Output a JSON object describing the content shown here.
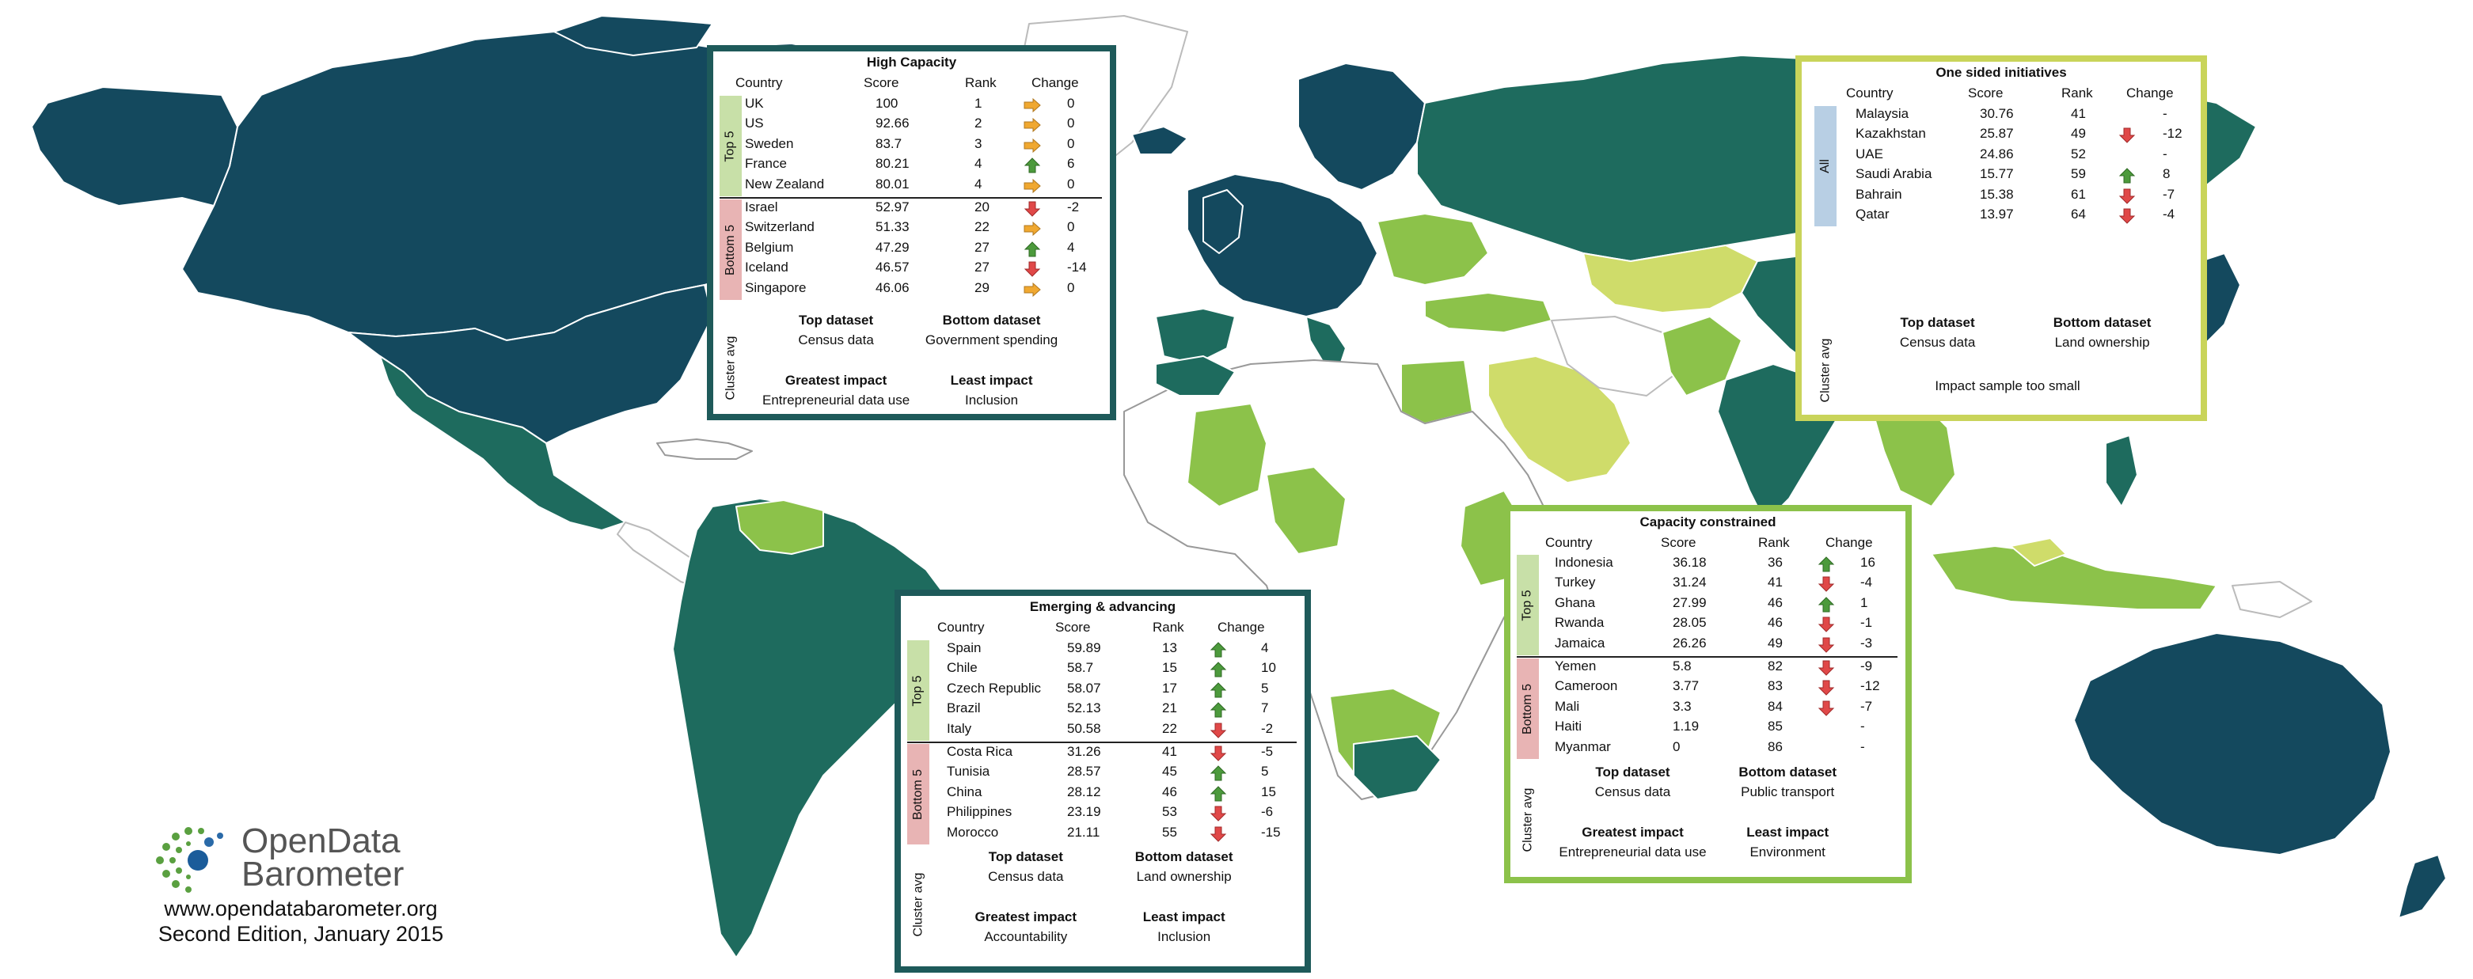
{
  "colors": {
    "high_capacity": "#14495e",
    "emerging_advancing": "#1e6b5e",
    "capacity_constrained": "#8cc24a",
    "one_sided": "#cfdc6a",
    "no_data": "#ffffff",
    "up_arrow": "#4c9a3c",
    "down_arrow": "#e04848",
    "flat_arrow": "#f0a830"
  },
  "panels": {
    "high_capacity": {
      "title": "High Capacity",
      "border_color": "#1e5a5a",
      "headers": {
        "country": "Country",
        "score": "Score",
        "rank": "Rank",
        "change": "Change"
      },
      "top_label": "Top 5",
      "bottom_label": "Bottom 5",
      "rows": [
        {
          "country": "UK",
          "score": "100",
          "rank": "1",
          "dir": "flat",
          "change": "0"
        },
        {
          "country": "US",
          "score": "92.66",
          "rank": "2",
          "dir": "flat",
          "change": "0"
        },
        {
          "country": "Sweden",
          "score": "83.7",
          "rank": "3",
          "dir": "flat",
          "change": "0"
        },
        {
          "country": "France",
          "score": "80.21",
          "rank": "4",
          "dir": "up",
          "change": "6"
        },
        {
          "country": "New Zealand",
          "score": "80.01",
          "rank": "4",
          "dir": "flat",
          "change": "0"
        },
        {
          "country": "Israel",
          "score": "52.97",
          "rank": "20",
          "dir": "down",
          "change": "-2"
        },
        {
          "country": "Switzerland",
          "score": "51.33",
          "rank": "22",
          "dir": "flat",
          "change": "0"
        },
        {
          "country": "Belgium",
          "score": "47.29",
          "rank": "27",
          "dir": "up",
          "change": "4"
        },
        {
          "country": "Iceland",
          "score": "46.57",
          "rank": "27",
          "dir": "down",
          "change": "-14"
        },
        {
          "country": "Singapore",
          "score": "46.06",
          "rank": "29",
          "dir": "flat",
          "change": "0"
        }
      ],
      "cluster_avg": "Cluster avg",
      "top_dataset_label": "Top dataset",
      "top_dataset": "Census data",
      "bottom_dataset_label": "Bottom dataset",
      "bottom_dataset": "Government spending",
      "greatest_impact_label": "Greatest impact",
      "greatest_impact": "Entrepreneurial data use",
      "least_impact_label": "Least impact",
      "least_impact": "Inclusion"
    },
    "one_sided": {
      "title": "One sided initiatives",
      "border_color": "#c9d45a",
      "headers": {
        "country": "Country",
        "score": "Score",
        "rank": "Rank",
        "change": "Change"
      },
      "all_label": "All",
      "rows": [
        {
          "country": "Malaysia",
          "score": "30.76",
          "rank": "41",
          "dir": "none",
          "change": "-"
        },
        {
          "country": "Kazakhstan",
          "score": "25.87",
          "rank": "49",
          "dir": "down",
          "change": "-12"
        },
        {
          "country": "UAE",
          "score": "24.86",
          "rank": "52",
          "dir": "none",
          "change": "-"
        },
        {
          "country": "Saudi Arabia",
          "score": "15.77",
          "rank": "59",
          "dir": "up",
          "change": "8"
        },
        {
          "country": "Bahrain",
          "score": "15.38",
          "rank": "61",
          "dir": "down",
          "change": "-7"
        },
        {
          "country": "Qatar",
          "score": "13.97",
          "rank": "64",
          "dir": "down",
          "change": "-4"
        }
      ],
      "cluster_avg": "Cluster avg",
      "top_dataset_label": "Top dataset",
      "top_dataset": "Census data",
      "bottom_dataset_label": "Bottom dataset",
      "bottom_dataset": "Land ownership",
      "impact_note": "Impact sample too small"
    },
    "capacity_constrained": {
      "title": "Capacity constrained",
      "border_color": "#8cc24a",
      "headers": {
        "country": "Country",
        "score": "Score",
        "rank": "Rank",
        "change": "Change"
      },
      "top_label": "Top 5",
      "bottom_label": "Bottom 5",
      "rows": [
        {
          "country": "Indonesia",
          "score": "36.18",
          "rank": "36",
          "dir": "up",
          "change": "16"
        },
        {
          "country": "Turkey",
          "score": "31.24",
          "rank": "41",
          "dir": "down",
          "change": "-4"
        },
        {
          "country": "Ghana",
          "score": "27.99",
          "rank": "46",
          "dir": "up",
          "change": "1"
        },
        {
          "country": "Rwanda",
          "score": "28.05",
          "rank": "46",
          "dir": "down",
          "change": "-1"
        },
        {
          "country": "Jamaica",
          "score": "26.26",
          "rank": "49",
          "dir": "down",
          "change": "-3"
        },
        {
          "country": "Yemen",
          "score": "5.8",
          "rank": "82",
          "dir": "down",
          "change": "-9"
        },
        {
          "country": "Cameroon",
          "score": "3.77",
          "rank": "83",
          "dir": "down",
          "change": "-12"
        },
        {
          "country": "Mali",
          "score": "3.3",
          "rank": "84",
          "dir": "down",
          "change": "-7"
        },
        {
          "country": "Haiti",
          "score": "1.19",
          "rank": "85",
          "dir": "none",
          "change": "-"
        },
        {
          "country": "Myanmar",
          "score": "0",
          "rank": "86",
          "dir": "none",
          "change": "-"
        }
      ],
      "cluster_avg": "Cluster avg",
      "top_dataset_label": "Top dataset",
      "top_dataset": "Census data",
      "bottom_dataset_label": "Bottom dataset",
      "bottom_dataset": "Public transport",
      "greatest_impact_label": "Greatest impact",
      "greatest_impact": "Entrepreneurial data use",
      "least_impact_label": "Least impact",
      "least_impact": "Environment"
    },
    "emerging": {
      "title": "Emerging & advancing",
      "border_color": "#1e5a5a",
      "headers": {
        "country": "Country",
        "score": "Score",
        "rank": "Rank",
        "change": "Change"
      },
      "top_label": "Top 5",
      "bottom_label": "Bottom 5",
      "rows": [
        {
          "country": "Spain",
          "score": "59.89",
          "rank": "13",
          "dir": "up",
          "change": "4"
        },
        {
          "country": "Chile",
          "score": "58.7",
          "rank": "15",
          "dir": "up",
          "change": "10"
        },
        {
          "country": "Czech Republic",
          "score": "58.07",
          "rank": "17",
          "dir": "up",
          "change": "5"
        },
        {
          "country": "Brazil",
          "score": "52.13",
          "rank": "21",
          "dir": "up",
          "change": "7"
        },
        {
          "country": "Italy",
          "score": "50.58",
          "rank": "22",
          "dir": "down",
          "change": "-2"
        },
        {
          "country": "Costa Rica",
          "score": "31.26",
          "rank": "41",
          "dir": "down",
          "change": "-5"
        },
        {
          "country": "Tunisia",
          "score": "28.57",
          "rank": "45",
          "dir": "up",
          "change": "5"
        },
        {
          "country": "China",
          "score": "28.12",
          "rank": "46",
          "dir": "up",
          "change": "15"
        },
        {
          "country": "Philippines",
          "score": "23.19",
          "rank": "53",
          "dir": "down",
          "change": "-6"
        },
        {
          "country": "Morocco",
          "score": "21.11",
          "rank": "55",
          "dir": "down",
          "change": "-15"
        }
      ],
      "cluster_avg": "Cluster avg",
      "top_dataset_label": "Top dataset",
      "top_dataset": "Census data",
      "bottom_dataset_label": "Bottom dataset",
      "bottom_dataset": "Land ownership",
      "greatest_impact_label": "Greatest impact",
      "greatest_impact": "Accountability",
      "least_impact_label": "Least impact",
      "least_impact": "Inclusion"
    }
  },
  "branding": {
    "logo_line1": "OpenData",
    "logo_line2": "Barometer",
    "url": "www.opendatabarometer.org",
    "edition": "Second Edition, January 2015"
  }
}
